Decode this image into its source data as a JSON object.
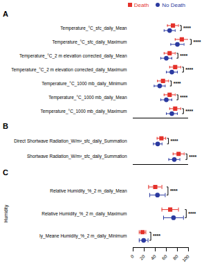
{
  "chart_data": [
    {
      "type": "scatter",
      "title": "A",
      "orientation": "horizontal",
      "tick_labels": "y",
      "legend": "top",
      "categories": [
        "Temperature_°C_sfc_daily_Mean",
        "Temperature_°C_sfc_daily_Maximum",
        "Temperature_°C_2 m elevation corrected_daily_Mean",
        "Temperature_°C_2 m elevation corrected_daily_Maximum",
        "Temperature_°C_1000 mb_daily_Minimum",
        "Temperature_°C_1000 mb_daily_Mean",
        "Temperature_°C_1000 mb_daily_Maximum"
      ],
      "xlim": [
        0,
        50
      ],
      "series": [
        {
          "name": "Death",
          "color": "#e4322b",
          "marker": "square",
          "values": [
            36,
            44,
            33,
            38,
            27,
            33,
            38
          ],
          "errors": [
            5,
            6,
            5,
            5,
            5,
            5,
            5
          ]
        },
        {
          "name": "No Death",
          "color": "#2b3aa0",
          "marker": "circle",
          "values": [
            33,
            40,
            30,
            35,
            24,
            30,
            35
          ],
          "errors": [
            5,
            6,
            5,
            5,
            5,
            5,
            5
          ]
        }
      ],
      "significance": [
        "****",
        "****",
        "****",
        "****",
        "****",
        "****",
        "****"
      ]
    },
    {
      "type": "scatter",
      "title": "B",
      "orientation": "horizontal",
      "tick_labels": "y",
      "categories": [
        "Direct Shortwave Radiation_W/m²_sfc_daily_Summation",
        "Shortwave Radiation_W/m²_sfc_daily_Summation"
      ],
      "xlim": [
        0,
        9000
      ],
      "series": [
        {
          "name": "Death",
          "color": "#e4322b",
          "marker": "square",
          "values": [
            4600,
            7400
          ],
          "errors": [
            700,
            900
          ]
        },
        {
          "name": "No Death",
          "color": "#2b3aa0",
          "marker": "circle",
          "values": [
            4000,
            6700
          ],
          "errors": [
            700,
            900
          ]
        }
      ],
      "significance": [
        "****",
        "****"
      ]
    },
    {
      "type": "scatter",
      "title": "C",
      "orientation": "horizontal",
      "y_label": "Humidity",
      "categories": [
        "Relative Humidity_%_2 m_daily_Mean",
        "Relative Humidity_%_2 m_daily_Maximum",
        "Iy_Meane Humidity_%_2 m_daily_Minimum"
      ],
      "xlim": [
        0,
        100
      ],
      "xticks": [
        0,
        20,
        40,
        60,
        80,
        100
      ],
      "series": [
        {
          "name": "Death",
          "color": "#e4322b",
          "marker": "square",
          "values": [
            40,
            67,
            17
          ],
          "errors": [
            12,
            15,
            6
          ]
        },
        {
          "name": "No Death",
          "color": "#2b3aa0",
          "marker": "circle",
          "values": [
            44,
            73,
            19
          ],
          "errors": [
            14,
            18,
            8
          ]
        }
      ],
      "significance": [
        "****",
        "****",
        "****"
      ]
    }
  ]
}
